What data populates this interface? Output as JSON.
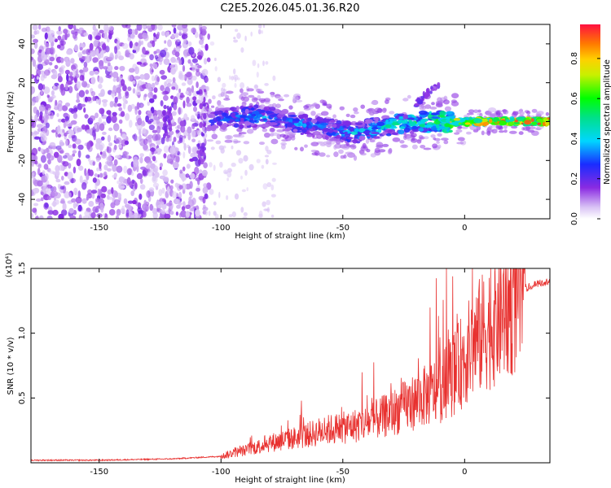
{
  "title": "C2E5.2026.045.01.36.R20",
  "chart_data": [
    {
      "type": "heatmap",
      "title": "C2E5.2026.045.01.36.R20",
      "xlabel": "Height of straight line (km)",
      "ylabel": "Frequency (Hz)",
      "xlim": [
        -178,
        35
      ],
      "ylim": [
        -50,
        50
      ],
      "xticks": [
        -150,
        -100,
        -50,
        0
      ],
      "yticks": [
        -40,
        -20,
        0,
        20,
        40
      ],
      "colorbar": {
        "label": "Normalized spectral amplitude",
        "range": [
          0,
          0.97
        ],
        "ticks": [
          "0.0",
          "0.2",
          "0.4",
          "0.6",
          "0.8"
        ],
        "tick_values": [
          0.0,
          0.2,
          0.4,
          0.6,
          0.8
        ]
      },
      "noise_region_x": [
        -178,
        -108
      ],
      "signal_trace": {
        "x": [
          -105,
          -95,
          -85,
          -75,
          -65,
          -55,
          -45,
          -35,
          -25,
          -15,
          -5,
          5,
          15,
          25,
          35
        ],
        "freq": [
          1,
          2,
          3,
          1,
          -2,
          -4,
          -6,
          -3,
          -1,
          0,
          0,
          0,
          0,
          0,
          0
        ],
        "amplitude": [
          0.3,
          0.35,
          0.4,
          0.35,
          0.35,
          0.35,
          0.4,
          0.45,
          0.5,
          0.55,
          0.7,
          0.8,
          0.85,
          0.9,
          0.9
        ]
      },
      "secondary_trace": {
        "x": [
          -20,
          -15,
          -10
        ],
        "freq": [
          9,
          15,
          19
        ]
      }
    },
    {
      "type": "line",
      "xlabel": "Height of straight line (km)",
      "ylabel": "SNR (10 * v/v)",
      "y_multiplier_label": "(x10⁴)",
      "xlim": [
        -178,
        35
      ],
      "ylim": [
        0,
        1.5
      ],
      "xticks": [
        -150,
        -100,
        -50,
        0
      ],
      "yticks": [
        "0.5",
        "1.0",
        "1.5"
      ],
      "ytick_values": [
        0.5,
        1.0,
        1.5
      ],
      "series": [
        {
          "name": "SNR",
          "color": "#e8312f",
          "x": [
            -178,
            -150,
            -120,
            -110,
            -100,
            -95,
            -90,
            -85,
            -80,
            -75,
            -70,
            -65,
            -60,
            -55,
            -50,
            -45,
            -40,
            -35,
            -30,
            -25,
            -20,
            -15,
            -10,
            -5,
            0,
            5,
            10,
            15,
            20,
            25,
            30,
            35
          ],
          "y": [
            0.02,
            0.02,
            0.03,
            0.04,
            0.05,
            0.08,
            0.1,
            0.13,
            0.16,
            0.18,
            0.2,
            0.22,
            0.25,
            0.27,
            0.28,
            0.3,
            0.32,
            0.36,
            0.4,
            0.45,
            0.5,
            0.55,
            0.6,
            0.7,
            0.85,
            1.0,
            1.1,
            1.2,
            1.3,
            1.35,
            1.38,
            1.4
          ]
        }
      ]
    }
  ],
  "colors": {
    "snr_line": "#e8312f",
    "noise": "#7b2fe0"
  }
}
